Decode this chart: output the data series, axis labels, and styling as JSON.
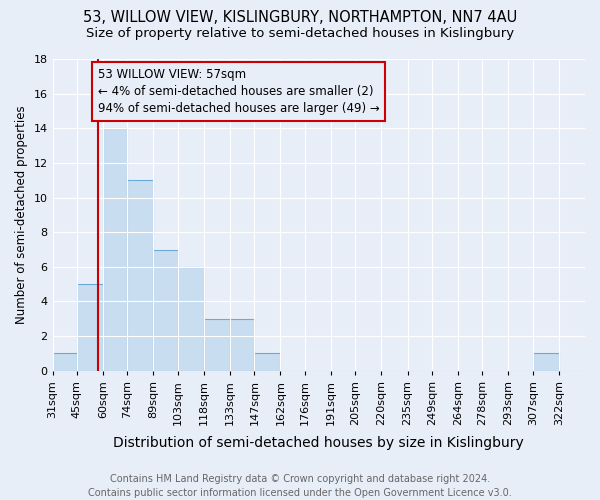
{
  "title1": "53, WILLOW VIEW, KISLINGBURY, NORTHAMPTON, NN7 4AU",
  "title2": "Size of property relative to semi-detached houses in Kislingbury",
  "xlabel": "Distribution of semi-detached houses by size in Kislingbury",
  "ylabel": "Number of semi-detached properties",
  "footnote": "Contains HM Land Registry data © Crown copyright and database right 2024.\nContains public sector information licensed under the Open Government Licence v3.0.",
  "bins": [
    31,
    45,
    60,
    74,
    89,
    103,
    118,
    133,
    147,
    162,
    176,
    191,
    205,
    220,
    235,
    249,
    264,
    278,
    293,
    307,
    322,
    337
  ],
  "bin_labels": [
    "31sqm",
    "45sqm",
    "60sqm",
    "74sqm",
    "89sqm",
    "103sqm",
    "118sqm",
    "133sqm",
    "147sqm",
    "162sqm",
    "176sqm",
    "191sqm",
    "205sqm",
    "220sqm",
    "235sqm",
    "249sqm",
    "264sqm",
    "278sqm",
    "293sqm",
    "307sqm",
    "322sqm"
  ],
  "values": [
    1,
    5,
    14,
    11,
    7,
    6,
    3,
    3,
    1,
    0,
    0,
    0,
    0,
    0,
    0,
    0,
    0,
    0,
    0,
    1,
    0
  ],
  "ylim": [
    0,
    18
  ],
  "yticks": [
    0,
    2,
    4,
    6,
    8,
    10,
    12,
    14,
    16,
    18
  ],
  "bar_color": "#c8ddf0",
  "bar_edge_color": "#6aaad4",
  "property_size": 57,
  "property_line_color": "#cc0000",
  "annotation_line1": "53 WILLOW VIEW: 57sqm",
  "annotation_line2": "← 4% of semi-detached houses are smaller (2)",
  "annotation_line3": "94% of semi-detached houses are larger (49) →",
  "annotation_box_color": "#cc0000",
  "bg_color": "#e8eef8",
  "grid_color": "#ffffff",
  "title1_fontsize": 10.5,
  "title2_fontsize": 9.5,
  "xlabel_fontsize": 10,
  "ylabel_fontsize": 8.5,
  "tick_fontsize": 8,
  "annotation_fontsize": 8.5,
  "footnote_fontsize": 7
}
